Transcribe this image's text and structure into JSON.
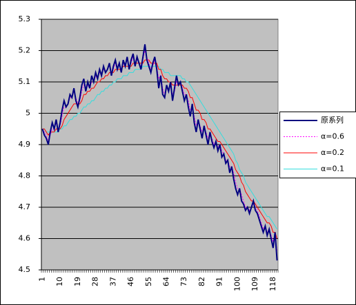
{
  "chart_data": {
    "type": "line",
    "categories": [
      1,
      null,
      null,
      null,
      null,
      null,
      null,
      null,
      null,
      10,
      null,
      null,
      null,
      null,
      null,
      null,
      null,
      null,
      19,
      null,
      null,
      null,
      null,
      null,
      null,
      null,
      null,
      28,
      null,
      null,
      null,
      null,
      null,
      null,
      null,
      null,
      37,
      null,
      null,
      null,
      null,
      null,
      null,
      null,
      null,
      46,
      null,
      null,
      null,
      null,
      null,
      null,
      null,
      null,
      55,
      null,
      null,
      null,
      null,
      null,
      null,
      null,
      null,
      64,
      null,
      null,
      null,
      null,
      null,
      null,
      null,
      null,
      73,
      null,
      null,
      null,
      null,
      null,
      null,
      null,
      null,
      82,
      null,
      null,
      null,
      null,
      null,
      null,
      null,
      null,
      91,
      null,
      null,
      null,
      null,
      null,
      null,
      null,
      null,
      100,
      null,
      null,
      null,
      null,
      null,
      null,
      null,
      null,
      109,
      null,
      null,
      null,
      null,
      null,
      null,
      null,
      null,
      118,
      null,
      null
    ],
    "series": [
      {
        "name": "原系列",
        "color": "#000080",
        "values": [
          4.95,
          4.93,
          4.92,
          4.9,
          4.94,
          4.97,
          4.95,
          4.98,
          4.94,
          4.97,
          5.01,
          5.04,
          5.02,
          5.03,
          5.06,
          5.05,
          5.08,
          5.04,
          5.02,
          5.05,
          5.09,
          5.11,
          5.07,
          5.1,
          5.08,
          5.12,
          5.1,
          5.13,
          5.11,
          5.14,
          5.12,
          5.15,
          5.13,
          5.14,
          5.16,
          5.12,
          5.15,
          5.17,
          5.14,
          5.16,
          5.13,
          5.17,
          5.15,
          5.18,
          5.14,
          5.17,
          5.19,
          5.15,
          5.18,
          5.16,
          5.14,
          5.18,
          5.22,
          5.17,
          5.15,
          5.13,
          5.16,
          5.18,
          5.14,
          5.08,
          5.12,
          5.06,
          5.05,
          5.09,
          5.07,
          5.1,
          5.04,
          5.08,
          5.12,
          5.09,
          5.1,
          5.07,
          5.04,
          5.06,
          5.02,
          4.99,
          5.03,
          4.97,
          4.94,
          4.98,
          4.95,
          4.92,
          4.96,
          4.93,
          4.9,
          4.94,
          4.91,
          4.89,
          4.91,
          4.88,
          4.9,
          4.86,
          4.87,
          4.84,
          4.85,
          4.81,
          4.83,
          4.79,
          4.76,
          4.74,
          4.76,
          4.72,
          4.71,
          4.69,
          4.7,
          4.68,
          4.7,
          4.72,
          4.69,
          4.68,
          4.66,
          4.64,
          4.62,
          4.64,
          4.61,
          4.63,
          4.6,
          4.57,
          4.62,
          4.53
        ]
      },
      {
        "name": "α=0.6",
        "color": "#ff00ff",
        "dashed": true,
        "values": [
          4.95,
          4.94,
          4.93,
          4.91,
          4.93,
          4.95,
          4.95,
          4.97,
          4.95,
          4.96,
          4.99,
          5.02,
          5.02,
          5.03,
          5.05,
          5.05,
          5.07,
          5.05,
          5.03,
          5.04,
          5.07,
          5.09,
          5.08,
          5.09,
          5.08,
          5.1,
          5.1,
          5.12,
          5.11,
          5.13,
          5.12,
          5.14,
          5.13,
          5.14,
          5.15,
          5.13,
          5.14,
          5.16,
          5.15,
          5.16,
          5.14,
          5.16,
          5.15,
          5.17,
          5.15,
          5.16,
          5.18,
          5.16,
          5.17,
          5.16,
          5.15,
          5.17,
          5.2,
          5.18,
          5.16,
          5.14,
          5.15,
          5.17,
          5.15,
          5.11,
          5.12,
          5.08,
          5.06,
          5.08,
          5.07,
          5.09,
          5.06,
          5.07,
          5.1,
          5.09,
          5.1,
          5.08,
          5.06,
          5.06,
          5.04,
          5.01,
          5.02,
          4.99,
          4.96,
          4.97,
          4.96,
          4.94,
          4.95,
          4.94,
          4.92,
          4.93,
          4.92,
          4.9,
          4.91,
          4.89,
          4.9,
          4.88,
          4.87,
          4.85,
          4.85,
          4.83,
          4.83,
          4.81,
          4.78,
          4.76,
          4.76,
          4.74,
          4.72,
          4.7,
          4.7,
          4.69,
          4.7,
          4.71,
          4.7,
          4.69,
          4.67,
          4.65,
          4.63,
          4.64,
          4.62,
          4.63,
          4.61,
          4.59,
          4.61,
          4.56
        ]
      },
      {
        "name": "α=0.2",
        "color": "#ff0000",
        "values": [
          4.95,
          4.95,
          4.94,
          4.93,
          4.94,
          4.94,
          4.94,
          4.95,
          4.95,
          4.95,
          4.96,
          4.98,
          4.99,
          5.0,
          5.01,
          5.02,
          5.03,
          5.03,
          5.03,
          5.03,
          5.04,
          5.06,
          5.06,
          5.07,
          5.07,
          5.08,
          5.08,
          5.09,
          5.1,
          5.1,
          5.11,
          5.11,
          5.12,
          5.12,
          5.13,
          5.13,
          5.13,
          5.14,
          5.14,
          5.14,
          5.14,
          5.15,
          5.15,
          5.15,
          5.15,
          5.15,
          5.16,
          5.16,
          5.16,
          5.16,
          5.16,
          5.16,
          5.17,
          5.17,
          5.17,
          5.16,
          5.16,
          5.16,
          5.16,
          5.14,
          5.14,
          5.12,
          5.11,
          5.11,
          5.1,
          5.1,
          5.09,
          5.09,
          5.09,
          5.09,
          5.09,
          5.09,
          5.08,
          5.08,
          5.07,
          5.05,
          5.05,
          5.03,
          5.01,
          5.01,
          5.0,
          4.98,
          4.98,
          4.97,
          4.95,
          4.95,
          4.94,
          4.93,
          4.92,
          4.91,
          4.91,
          4.9,
          4.89,
          4.88,
          4.87,
          4.86,
          4.85,
          4.84,
          4.82,
          4.81,
          4.8,
          4.78,
          4.77,
          4.75,
          4.74,
          4.73,
          4.72,
          4.72,
          4.71,
          4.7,
          4.69,
          4.68,
          4.67,
          4.66,
          4.65,
          4.65,
          4.64,
          4.62,
          4.62,
          4.6
        ]
      },
      {
        "name": "α=0.1",
        "color": "#33dddd",
        "values": [
          4.95,
          4.95,
          4.94,
          4.94,
          4.94,
          4.94,
          4.94,
          4.94,
          4.94,
          4.95,
          4.95,
          4.96,
          4.96,
          4.97,
          4.98,
          4.98,
          4.99,
          4.99,
          5.0,
          5.0,
          5.01,
          5.02,
          5.02,
          5.03,
          5.03,
          5.04,
          5.04,
          5.05,
          5.06,
          5.06,
          5.07,
          5.07,
          5.08,
          5.08,
          5.09,
          5.09,
          5.1,
          5.1,
          5.11,
          5.11,
          5.11,
          5.12,
          5.12,
          5.12,
          5.13,
          5.13,
          5.13,
          5.14,
          5.14,
          5.14,
          5.14,
          5.15,
          5.15,
          5.15,
          5.15,
          5.15,
          5.15,
          5.15,
          5.15,
          5.15,
          5.14,
          5.14,
          5.13,
          5.13,
          5.13,
          5.12,
          5.12,
          5.12,
          5.12,
          5.12,
          5.12,
          5.11,
          5.11,
          5.1,
          5.1,
          5.09,
          5.08,
          5.07,
          5.06,
          5.05,
          5.04,
          5.03,
          5.02,
          5.01,
          5.0,
          4.99,
          4.98,
          4.97,
          4.96,
          4.95,
          4.94,
          4.93,
          4.92,
          4.91,
          4.9,
          4.89,
          4.88,
          4.87,
          4.85,
          4.84,
          4.82,
          4.81,
          4.8,
          4.78,
          4.77,
          4.76,
          4.75,
          4.74,
          4.73,
          4.72,
          4.71,
          4.7,
          4.69,
          4.68,
          4.67,
          4.67,
          4.66,
          4.65,
          4.64,
          4.63
        ]
      }
    ],
    "ylim": [
      4.5,
      5.3
    ],
    "yticks": [
      4.5,
      4.6,
      4.7,
      4.8,
      4.9,
      5,
      5.1,
      5.2,
      5.3
    ],
    "grid": true
  }
}
